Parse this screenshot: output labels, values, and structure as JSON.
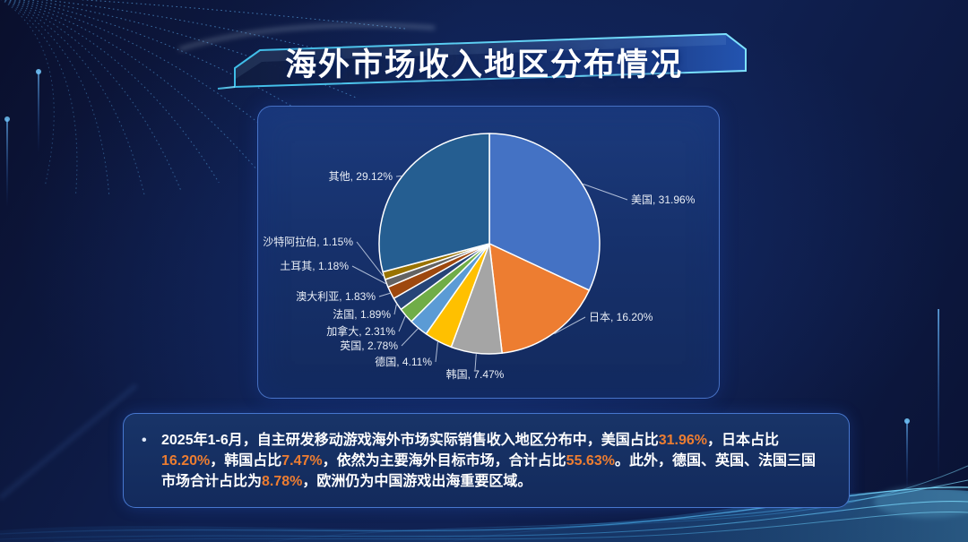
{
  "page": {
    "title": "海外市场收入地区分布情况"
  },
  "chart_data": {
    "type": "pie",
    "title": "海外市场收入地区分布情况",
    "unit": "%",
    "direction": "clockwise",
    "start_angle_deg": 0,
    "label_format": "{label}, {value}%",
    "slices": [
      {
        "label": "美国",
        "value": 31.96,
        "color": "#4472C4"
      },
      {
        "label": "日本",
        "value": 16.2,
        "color": "#ED7D31"
      },
      {
        "label": "韩国",
        "value": 7.47,
        "color": "#A5A5A5"
      },
      {
        "label": "德国",
        "value": 4.11,
        "color": "#FFC000"
      },
      {
        "label": "英国",
        "value": 2.78,
        "color": "#5B9BD5"
      },
      {
        "label": "加拿大",
        "value": 2.31,
        "color": "#70AD47"
      },
      {
        "label": "法国",
        "value": 1.89,
        "color": "#264478"
      },
      {
        "label": "澳大利亚",
        "value": 1.83,
        "color": "#9E480E"
      },
      {
        "label": "土耳其",
        "value": 1.18,
        "color": "#636363"
      },
      {
        "label": "沙特阿拉伯",
        "value": 1.15,
        "color": "#997300"
      },
      {
        "label": "其他",
        "value": 29.12,
        "color": "#255E91"
      }
    ]
  },
  "insight": {
    "marker": "•",
    "segments": [
      {
        "text": "2025年1-6月，自主研发移动游戏海外市场实际销售收入地区分布中，美国占比",
        "highlight": false
      },
      {
        "text": "31.96%",
        "highlight": true
      },
      {
        "text": "，日本占比",
        "highlight": false
      },
      {
        "text": "16.20%",
        "highlight": true
      },
      {
        "text": "，韩国占比",
        "highlight": false
      },
      {
        "text": "7.47%",
        "highlight": true
      },
      {
        "text": "，依然为主要海外目标市场，合计占比",
        "highlight": false
      },
      {
        "text": "55.63%",
        "highlight": true
      },
      {
        "text": "。此外，德国、英国、法国三国市场合计占比为",
        "highlight": false
      },
      {
        "text": "8.78%",
        "highlight": true
      },
      {
        "text": "，欧洲仍为中国游戏出海重要区域。",
        "highlight": false
      }
    ]
  },
  "colors": {
    "highlight": "#ED7D31",
    "banner_trim": "#57CDF2",
    "pie_border": "#FFFFFF",
    "label_text": "#E9EEF6",
    "leader_line": "rgba(225,235,250,0.75)"
  }
}
